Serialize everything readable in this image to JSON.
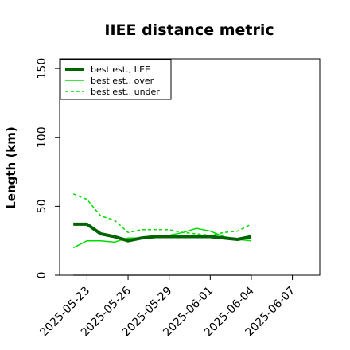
{
  "chart_data": {
    "type": "line",
    "title": "IIEE distance metric",
    "xlabel": "",
    "ylabel": "Length (km)",
    "ylim": [
      0,
      157
    ],
    "xlim": [
      "2025-05-21",
      "2025-06-09"
    ],
    "yticks": [
      0,
      50,
      100,
      150
    ],
    "xtick_labels": [
      "2025-05-23",
      "2025-05-26",
      "2025-05-29",
      "2025-06-01",
      "2025-06-04",
      "2025-06-07"
    ],
    "x": [
      "2025-05-22",
      "2025-05-23",
      "2025-05-24",
      "2025-05-25",
      "2025-05-26",
      "2025-05-27",
      "2025-05-28",
      "2025-05-29",
      "2025-05-30",
      "2025-05-31",
      "2025-06-01",
      "2025-06-02",
      "2025-06-03",
      "2025-06-04"
    ],
    "series": [
      {
        "name": "best est., IIEE",
        "color": "#006400",
        "style": "solid",
        "width": "thick",
        "values": [
          37,
          37,
          30,
          28,
          25,
          27,
          28,
          28,
          28,
          28,
          28,
          27,
          26,
          28
        ]
      },
      {
        "name": "best est., over",
        "color": "#00dd00",
        "style": "solid",
        "width": "thin",
        "values": [
          20,
          25,
          25,
          24,
          27,
          27,
          28,
          29,
          31,
          34,
          32,
          28,
          26,
          25
        ]
      },
      {
        "name": "best est., under",
        "color": "#00dd00",
        "style": "dashed",
        "width": "thin",
        "values": [
          59,
          55,
          43,
          40,
          31,
          33,
          33,
          33,
          31,
          30,
          29,
          31,
          32,
          37
        ]
      },
      {
        "name": "",
        "color": "#808080",
        "style": "solid",
        "width": "thin",
        "values": [
          0,
          0,
          0,
          0,
          0,
          0,
          0,
          0,
          0,
          0,
          0,
          0,
          0,
          0
        ]
      }
    ],
    "legend": {
      "placement": "top-left",
      "entries": [
        "best est., IIEE",
        "best est., over",
        "best est., under"
      ]
    },
    "grid": false
  }
}
